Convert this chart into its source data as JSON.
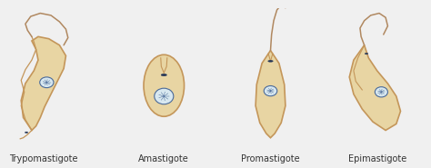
{
  "labels": [
    "Trypomastigote",
    "Amastigote",
    "Promastigote",
    "Epimastigote"
  ],
  "label_fontsize": 7.0,
  "body_color": "#e8d5a3",
  "body_edge_color": "#c4965a",
  "body_edge_lw": 1.2,
  "nucleus_fill": "#d8e8f0",
  "nucleus_edge": "#4a6a99",
  "nucleus_lw": 0.8,
  "kinetoplast_color": "#223355",
  "flagellum_color": "#b08860",
  "flagellum_lw": 1.1,
  "background": "#f0f0f0",
  "positions": [
    0.5,
    1.5,
    2.5,
    3.5
  ]
}
